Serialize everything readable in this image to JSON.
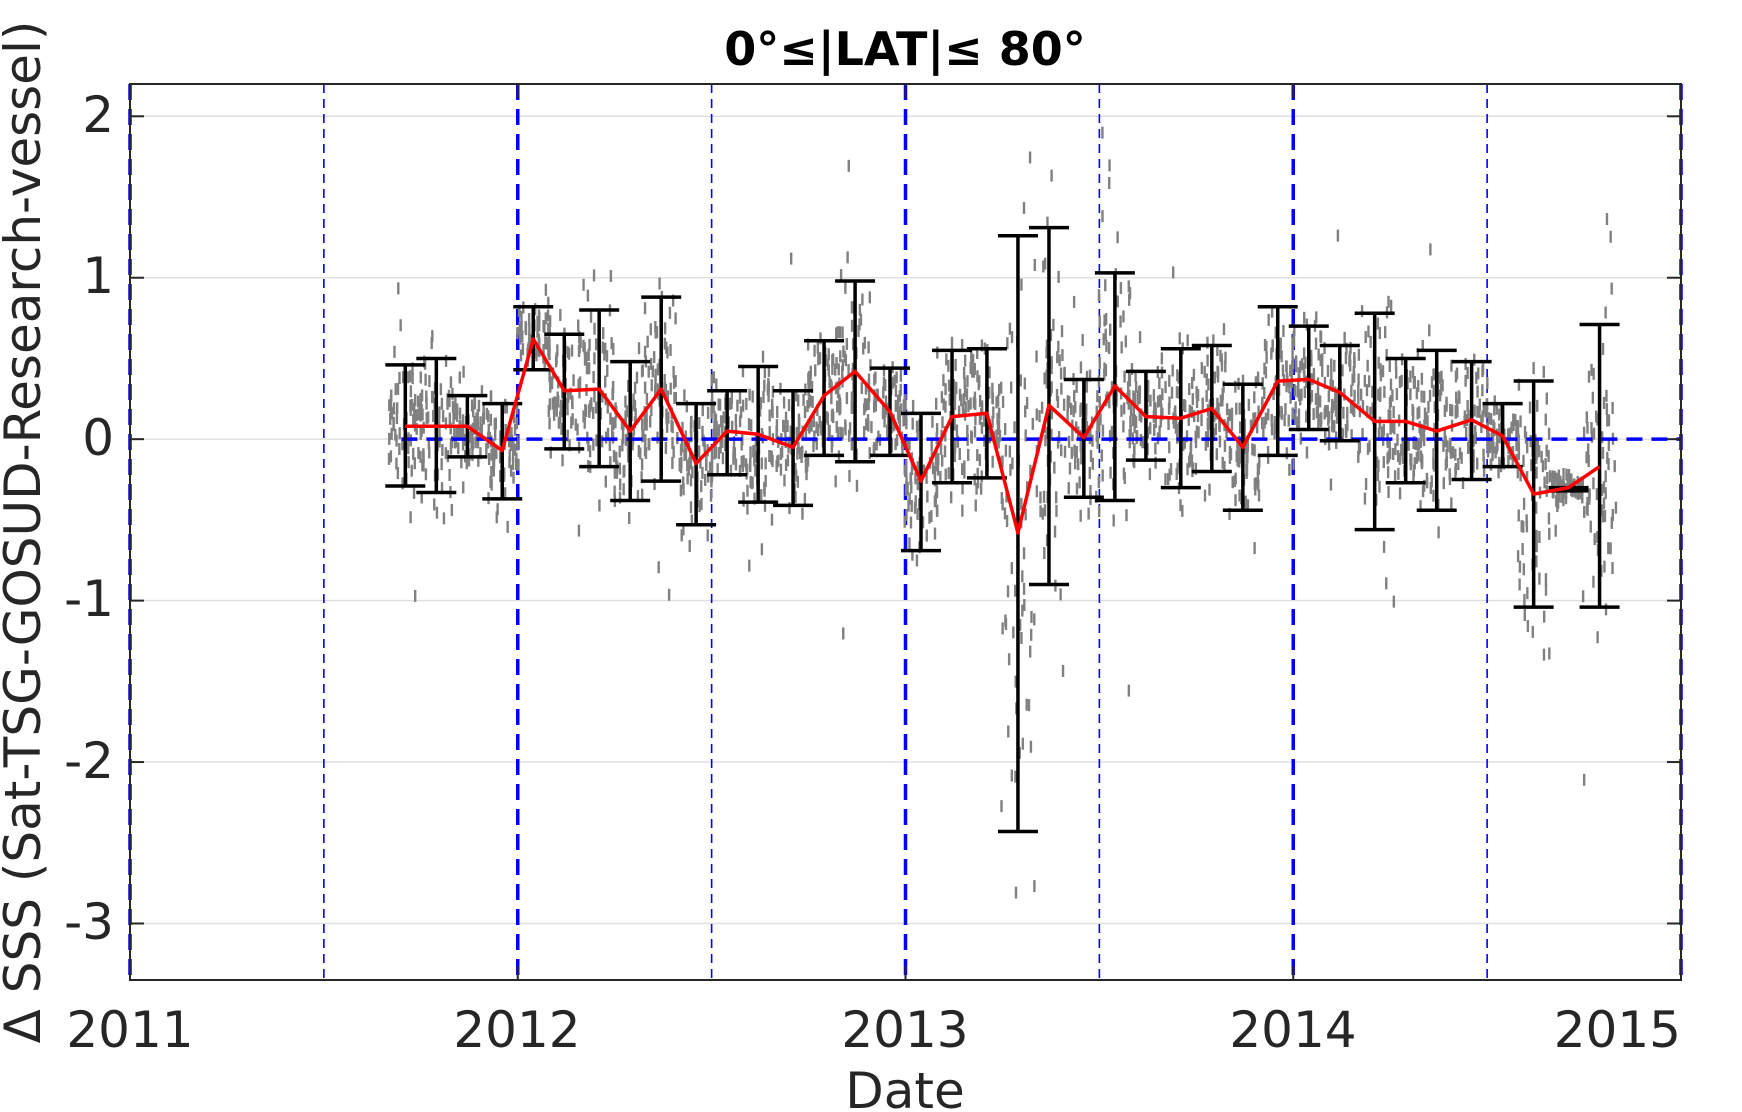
{
  "chart_data": {
    "type": "scatter",
    "title": "0°≤|LAT|≤ 80°",
    "xlabel": "Date",
    "ylabel": "Δ SSS (Sat-TSG-GOSUD-Research-vessel)",
    "x_tick_labels": [
      "2011",
      "2012",
      "2013",
      "2014",
      "2015"
    ],
    "y_tick_labels": [
      "2",
      "1",
      "0",
      "-1",
      "-2",
      "-3"
    ],
    "xlim": [
      2011.0,
      2015.0
    ],
    "ylim": [
      -3.35,
      2.2
    ],
    "grid": true,
    "colors": {
      "scatter": "#808080",
      "mean_line": "#ff0000",
      "errorbars": "#000000",
      "reference_lines": "#0000ff",
      "grid": "#e0e0e0"
    },
    "zero_reference_line": {
      "y": 0,
      "x_range": [
        2011.7,
        2015.0
      ]
    },
    "year_boundaries": [
      2011.0,
      2012.0,
      2013.0,
      2014.0,
      2015.0
    ],
    "half_year_lines": [
      2011.5,
      2012.5,
      2013.5,
      2014.5
    ],
    "monthly_mean": {
      "x": [
        2011.71,
        2011.79,
        2011.87,
        2011.96,
        2012.04,
        2012.12,
        2012.21,
        2012.29,
        2012.37,
        2012.46,
        2012.54,
        2012.62,
        2012.71,
        2012.79,
        2012.87,
        2012.96,
        2013.04,
        2013.12,
        2013.21,
        2013.29,
        2013.37,
        2013.46,
        2013.54,
        2013.62,
        2013.71,
        2013.79,
        2013.87,
        2013.96,
        2014.04,
        2014.12,
        2014.21,
        2014.29,
        2014.37,
        2014.46,
        2014.54,
        2014.62,
        2014.71,
        2014.79
      ],
      "y": [
        0.08,
        0.08,
        0.08,
        -0.07,
        0.62,
        0.3,
        0.31,
        0.05,
        0.31,
        -0.15,
        0.05,
        0.03,
        -0.05,
        0.27,
        0.42,
        0.17,
        -0.26,
        0.14,
        0.16,
        -0.58,
        0.21,
        0.01,
        0.33,
        0.14,
        0.13,
        0.19,
        -0.05,
        0.36,
        0.37,
        0.29,
        0.11,
        0.11,
        0.05,
        0.12,
        0.02,
        -0.34,
        -0.3,
        -0.17
      ]
    },
    "errorbars": [
      {
        "x": 2011.71,
        "low": -0.29,
        "high": 0.46
      },
      {
        "x": 2011.79,
        "low": -0.33,
        "high": 0.5
      },
      {
        "x": 2011.87,
        "low": -0.11,
        "high": 0.27
      },
      {
        "x": 2011.96,
        "low": -0.37,
        "high": 0.22
      },
      {
        "x": 2012.04,
        "low": 0.43,
        "high": 0.82
      },
      {
        "x": 2012.12,
        "low": -0.06,
        "high": 0.65
      },
      {
        "x": 2012.21,
        "low": -0.17,
        "high": 0.8
      },
      {
        "x": 2012.29,
        "low": -0.38,
        "high": 0.48
      },
      {
        "x": 2012.37,
        "low": -0.26,
        "high": 0.88
      },
      {
        "x": 2012.46,
        "low": -0.53,
        "high": 0.22
      },
      {
        "x": 2012.54,
        "low": -0.22,
        "high": 0.3
      },
      {
        "x": 2012.62,
        "low": -0.39,
        "high": 0.45
      },
      {
        "x": 2012.71,
        "low": -0.41,
        "high": 0.3
      },
      {
        "x": 2012.79,
        "low": -0.1,
        "high": 0.61
      },
      {
        "x": 2012.87,
        "low": -0.14,
        "high": 0.98
      },
      {
        "x": 2012.96,
        "low": -0.1,
        "high": 0.44
      },
      {
        "x": 2013.04,
        "low": -0.69,
        "high": 0.16
      },
      {
        "x": 2013.12,
        "low": -0.27,
        "high": 0.55
      },
      {
        "x": 2013.21,
        "low": -0.24,
        "high": 0.56
      },
      {
        "x": 2013.29,
        "low": -2.43,
        "high": 1.26
      },
      {
        "x": 2013.37,
        "low": -0.9,
        "high": 1.31
      },
      {
        "x": 2013.46,
        "low": -0.36,
        "high": 0.37
      },
      {
        "x": 2013.54,
        "low": -0.38,
        "high": 1.03
      },
      {
        "x": 2013.62,
        "low": -0.13,
        "high": 0.42
      },
      {
        "x": 2013.71,
        "low": -0.3,
        "high": 0.56
      },
      {
        "x": 2013.79,
        "low": -0.2,
        "high": 0.58
      },
      {
        "x": 2013.87,
        "low": -0.44,
        "high": 0.34
      },
      {
        "x": 2013.96,
        "low": -0.1,
        "high": 0.82
      },
      {
        "x": 2014.04,
        "low": 0.06,
        "high": 0.7
      },
      {
        "x": 2014.12,
        "low": -0.01,
        "high": 0.58
      },
      {
        "x": 2014.21,
        "low": -0.56,
        "high": 0.78
      },
      {
        "x": 2014.29,
        "low": -0.27,
        "high": 0.5
      },
      {
        "x": 2014.37,
        "low": -0.44,
        "high": 0.55
      },
      {
        "x": 2014.46,
        "low": -0.25,
        "high": 0.48
      },
      {
        "x": 2014.54,
        "low": -0.17,
        "high": 0.22
      },
      {
        "x": 2014.62,
        "low": -1.04,
        "high": 0.36
      },
      {
        "x": 2014.71,
        "low": -0.32,
        "high": -0.3
      },
      {
        "x": 2014.79,
        "low": -1.04,
        "high": 0.71
      }
    ]
  }
}
